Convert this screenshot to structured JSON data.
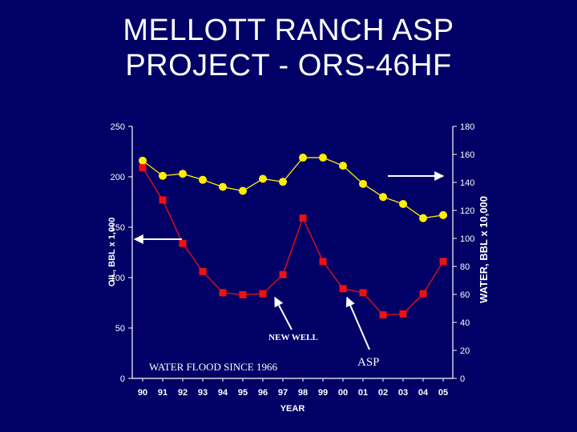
{
  "slide": {
    "title_line1": "MELLOTT RANCH ASP",
    "title_line2": "PROJECT - ORS-46HF"
  },
  "colors": {
    "background": "#000066",
    "oil_series": "#ffee00",
    "water_series": "#ee1111",
    "axis": "#ffffff",
    "text": "#ffffff"
  },
  "chart_data": {
    "type": "line",
    "title": "",
    "xlabel": "YEAR",
    "ylabel_left": "OIL, BBL x 1,000",
    "ylabel_right": "WATER, BBL x 10,000",
    "x": [
      "90",
      "91",
      "92",
      "93",
      "94",
      "95",
      "96",
      "97",
      "98",
      "99",
      "00",
      "01",
      "02",
      "03",
      "04",
      "05"
    ],
    "ylim_left": [
      0,
      250
    ],
    "yticks_left": [
      "0",
      "50",
      "100",
      "150",
      "200",
      "250"
    ],
    "ylim_right": [
      0,
      180
    ],
    "yticks_right": [
      "0",
      "20",
      "40",
      "60",
      "80",
      "100",
      "120",
      "140",
      "160",
      "180"
    ],
    "grid": false,
    "series": [
      {
        "axis": "left",
        "marker": "circle",
        "values": [
          216,
          201,
          203,
          197,
          190,
          186,
          198,
          195,
          219,
          219,
          211,
          193,
          180,
          173,
          159,
          162
        ]
      },
      {
        "axis": "left",
        "marker": "square",
        "values": [
          209,
          177,
          134,
          106,
          85,
          83,
          84,
          103,
          159,
          116,
          89,
          85,
          63,
          64,
          84,
          116
        ]
      }
    ],
    "annotations": [
      {
        "text": "NEW WELL",
        "points_to_year": "96"
      },
      {
        "text": "WATER FLOOD SINCE 1966"
      },
      {
        "text": "ASP",
        "points_to_year": "00"
      }
    ]
  }
}
